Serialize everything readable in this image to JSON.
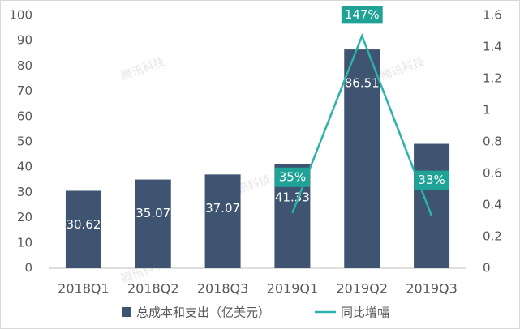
{
  "chart_data": {
    "type": "bar",
    "categories": [
      "2018Q1",
      "2018Q2",
      "2018Q3",
      "2019Q1",
      "2019Q2",
      "2019Q3"
    ],
    "series": [
      {
        "name": "总成本和支出（亿美元）",
        "type": "bar",
        "color": "#3e5470",
        "values": [
          30.62,
          35.07,
          37.07,
          41.33,
          86.51,
          49.19
        ]
      },
      {
        "name": "同比增幅",
        "type": "line",
        "axis": "y2",
        "color": "#2bb3aa",
        "values": [
          null,
          null,
          null,
          0.35,
          1.47,
          0.33
        ],
        "value_labels": [
          null,
          null,
          null,
          "35%",
          "147%",
          "33%"
        ]
      }
    ],
    "ylim": [
      0,
      100
    ],
    "yticks": [
      0,
      10,
      20,
      30,
      40,
      50,
      60,
      70,
      80,
      90,
      100
    ],
    "y2lim": [
      0,
      1.6
    ],
    "y2ticks": [
      0,
      0.2,
      0.4,
      0.6,
      0.8,
      1,
      1.2,
      1.4,
      1.6
    ],
    "grid": false,
    "legend": "bottom",
    "watermark": "腾讯科技"
  }
}
